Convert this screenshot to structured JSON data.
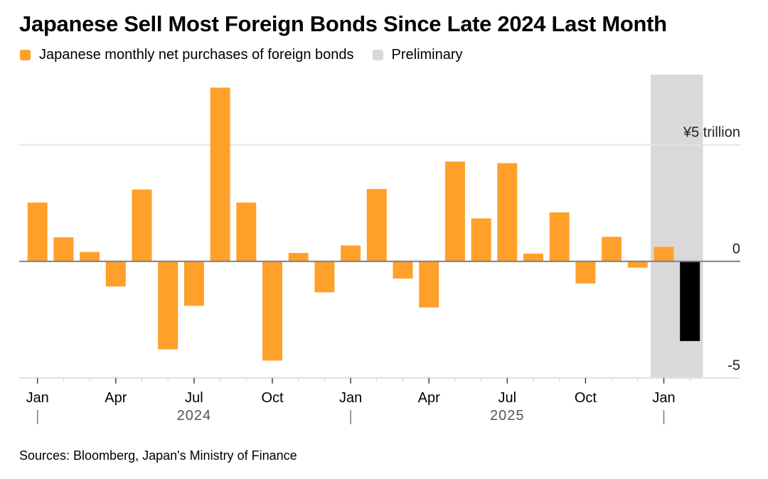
{
  "colors": {
    "positive_bar": "#ffa02b",
    "preliminary_bar": "#000000",
    "preliminary_band": "#d9d9d9",
    "gridline": "#e3e3e3",
    "zero_line": "#7f7f7f"
  },
  "chart_data": {
    "type": "bar",
    "title": "Japanese Sell Most Foreign Bonds Since Late 2024 Last Month",
    "legend": [
      {
        "label": "Japanese monthly net purchases of foreign bonds",
        "color": "#ffa02b"
      },
      {
        "label": "Preliminary",
        "color": "#d9d9d9"
      }
    ],
    "legend_placement": "top-left",
    "xlabel": "",
    "ylabel": "",
    "unit": "¥ trillion",
    "ylim": [
      -5,
      7.5
    ],
    "yticks": [
      {
        "value": 5,
        "label": "¥5 trillion"
      },
      {
        "value": 0,
        "label": "0"
      },
      {
        "value": -5,
        "label": "-5"
      }
    ],
    "grid": true,
    "categories": [
      "2024-01",
      "2024-02",
      "2024-03",
      "2024-04",
      "2024-05",
      "2024-06",
      "2024-07",
      "2024-08",
      "2024-09",
      "2024-10",
      "2024-11",
      "2024-12",
      "2025-01",
      "2025-02",
      "2025-03",
      "2025-04",
      "2025-05",
      "2025-06",
      "2025-07",
      "2025-08",
      "2025-09",
      "2025-10",
      "2025-11",
      "2025-12",
      "2026-01",
      "2026-02"
    ],
    "values": [
      2.52,
      1.03,
      0.4,
      -1.08,
      3.08,
      -3.78,
      -1.91,
      7.45,
      2.52,
      -4.26,
      0.36,
      -1.33,
      0.68,
      3.1,
      -0.74,
      -1.98,
      4.28,
      1.84,
      4.21,
      0.33,
      2.1,
      -0.95,
      1.05,
      -0.27,
      0.62,
      -3.42
    ],
    "preliminary_categories": [
      "2026-01",
      "2026-02"
    ],
    "highlighted_category": "2026-02",
    "xticks": [
      {
        "index": 0,
        "label": "Jan"
      },
      {
        "index": 3,
        "label": "Apr"
      },
      {
        "index": 6,
        "label": "Jul"
      },
      {
        "index": 9,
        "label": "Oct"
      },
      {
        "index": 12,
        "label": "Jan"
      },
      {
        "index": 15,
        "label": "Apr"
      },
      {
        "index": 18,
        "label": "Jul"
      },
      {
        "index": 21,
        "label": "Oct"
      },
      {
        "index": 24,
        "label": "Jan"
      }
    ],
    "year_labels": [
      {
        "center_index": 6,
        "label": "2024"
      },
      {
        "center_index": 18,
        "label": "2025"
      }
    ],
    "year_dividers": [
      0,
      12,
      24
    ]
  },
  "source": "Sources: Bloomberg, Japan's Ministry of Finance"
}
